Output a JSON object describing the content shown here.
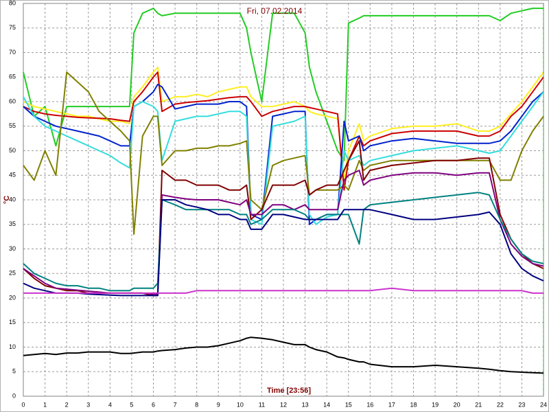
{
  "chart_data": {
    "type": "line",
    "title": "Fri, 07.02.2014",
    "x_label": "Time [23:56]",
    "y_label": "°C",
    "x": [
      0,
      0.5,
      1,
      1.5,
      2,
      2.5,
      3,
      3.5,
      4,
      4.5,
      4.9,
      5.1,
      5.5,
      6,
      6.2,
      6.4,
      7,
      7.5,
      8,
      8.5,
      9,
      9.5,
      10,
      10.3,
      10.5,
      11,
      11.5,
      12,
      12.5,
      13,
      13.2,
      13.5,
      14,
      14.5,
      14.8,
      15,
      15.5,
      15.7,
      16,
      17,
      18,
      19,
      20,
      21,
      21.5,
      22,
      22.5,
      23,
      23.5,
      24
    ],
    "xlim": [
      0,
      24
    ],
    "xticks": [
      0,
      1,
      2,
      3,
      4,
      5,
      6,
      7,
      8,
      9,
      10,
      11,
      12,
      13,
      14,
      15,
      16,
      17,
      18,
      19,
      20,
      21,
      22,
      23,
      24
    ],
    "ylim": [
      0,
      80
    ],
    "yticks": [
      0,
      5,
      10,
      15,
      20,
      25,
      30,
      35,
      40,
      45,
      50,
      55,
      60,
      65,
      70,
      75,
      80
    ],
    "grid": true,
    "series": [
      {
        "color": "#22cc22",
        "values": [
          66,
          57,
          59,
          51,
          59,
          59,
          59,
          59,
          59,
          59,
          59,
          74,
          78,
          79,
          78,
          77.5,
          78,
          78,
          78,
          78,
          78,
          78,
          78,
          75,
          70,
          60,
          78,
          78,
          78,
          74,
          67,
          62,
          56,
          50,
          48,
          76,
          77,
          77.5,
          77.5,
          77.5,
          77.5,
          77.5,
          77.5,
          77.5,
          77.5,
          76.5,
          78,
          78.5,
          79,
          79
        ]
      },
      {
        "color": "#ffee22",
        "values": [
          60,
          59,
          58.5,
          58,
          57.5,
          57,
          57,
          56.5,
          56,
          56,
          55.5,
          61,
          63,
          66,
          67,
          60,
          61,
          61,
          61.5,
          61,
          62,
          62.5,
          63,
          63,
          61,
          59,
          59,
          59.5,
          60,
          59,
          58,
          57.5,
          57,
          56.5,
          44,
          50,
          55.5,
          52,
          53,
          54.5,
          55,
          55,
          55.5,
          54,
          54,
          55,
          57.5,
          60,
          63,
          66
        ]
      },
      {
        "color": "#cc0000",
        "values": [
          59,
          58,
          57.5,
          57.2,
          57,
          56.8,
          56.7,
          56.6,
          56.5,
          56.2,
          56,
          60,
          62,
          65,
          66,
          58,
          59.5,
          59.8,
          60,
          60.2,
          60.5,
          60.8,
          61,
          61,
          60,
          57,
          58,
          58.5,
          59,
          59,
          58.8,
          58.5,
          58,
          57.5,
          42,
          48,
          53,
          51,
          52,
          53.5,
          54,
          54,
          54,
          53,
          53,
          54,
          57,
          59,
          62,
          65
        ]
      },
      {
        "color": "#0022cc",
        "values": [
          59,
          57,
          56,
          55,
          54.5,
          54,
          53.5,
          53,
          52,
          51,
          51,
          59,
          60,
          62,
          63.5,
          63,
          58.5,
          59,
          59.5,
          59.5,
          59.5,
          60,
          60,
          59,
          37,
          36,
          57,
          57.5,
          58,
          58,
          35,
          36,
          37,
          37,
          56,
          52,
          53,
          50,
          51,
          52,
          52.5,
          52,
          51.5,
          51.5,
          51.5,
          52,
          54,
          57,
          60,
          62
        ]
      },
      {
        "color": "#33dddd",
        "values": [
          61,
          57,
          55,
          54,
          53,
          52,
          51,
          50,
          49,
          47.5,
          46.5,
          59,
          60,
          59,
          58,
          48,
          56,
          56.5,
          57,
          57,
          57.5,
          58,
          58,
          57,
          36,
          35,
          55,
          55.5,
          56,
          57,
          37,
          35,
          36.5,
          37,
          50,
          48,
          49,
          47,
          48,
          49,
          50,
          50.5,
          51,
          50,
          49.5,
          50,
          53,
          56,
          59,
          62
        ]
      },
      {
        "color": "#808000",
        "values": [
          47,
          44,
          50,
          45,
          66,
          64,
          62,
          58,
          56,
          54,
          52,
          33,
          53,
          57,
          57,
          47,
          50,
          50,
          50.5,
          50.5,
          51,
          51,
          51.5,
          52,
          40,
          38,
          47,
          48,
          48.5,
          49,
          41,
          42,
          42,
          42,
          43,
          42,
          48,
          46,
          47,
          48,
          48,
          48,
          48,
          48,
          48,
          44,
          44,
          50,
          54,
          57
        ]
      },
      {
        "color": "#800000",
        "values": [
          26,
          24,
          22.5,
          22,
          21.5,
          21.5,
          21,
          21,
          21,
          21,
          21,
          21,
          21,
          20.5,
          20.5,
          46,
          44,
          44,
          43,
          43,
          43,
          42,
          42,
          43,
          36,
          38,
          43,
          43,
          43,
          44,
          41,
          42,
          43,
          43,
          46,
          48,
          52,
          44,
          46,
          47,
          47.5,
          48,
          48,
          48.5,
          48.5,
          37,
          32,
          29,
          27,
          26
        ]
      },
      {
        "color": "#800080",
        "values": [
          26,
          24.5,
          23,
          22,
          21.8,
          21.6,
          21.4,
          21.2,
          21,
          21,
          21,
          21,
          21,
          20.8,
          20.8,
          41,
          40.5,
          40.2,
          40,
          40,
          40,
          39.5,
          39,
          40,
          37,
          37,
          39,
          39,
          38,
          39,
          38,
          38,
          38,
          38,
          44,
          45,
          46,
          43,
          44,
          45,
          45.5,
          45.5,
          45,
          45.5,
          45.5,
          36,
          31,
          28.5,
          27,
          26.5
        ]
      },
      {
        "color": "#008080",
        "values": [
          27,
          25,
          24,
          23,
          22.5,
          22.5,
          22,
          22,
          21.5,
          21.5,
          21.5,
          22,
          22,
          22,
          23,
          40,
          39,
          38,
          38,
          38,
          38,
          38,
          37,
          37,
          35,
          36,
          38,
          38,
          38,
          37,
          36,
          36,
          37,
          37,
          37,
          37,
          31,
          38,
          39,
          39.5,
          40,
          40.5,
          41,
          41.5,
          41,
          36,
          32,
          29,
          27.5,
          27
        ]
      },
      {
        "color": "#000080",
        "values": [
          23,
          22,
          21.5,
          21,
          21,
          21,
          20.8,
          20.7,
          20.6,
          20.5,
          20.5,
          20.5,
          20.5,
          20.5,
          20.5,
          40,
          40,
          39,
          38.5,
          38,
          37,
          37,
          36,
          36,
          34,
          34,
          37,
          37,
          36.5,
          36,
          36,
          36,
          36,
          36,
          38,
          38,
          38,
          38,
          38,
          37,
          36,
          36,
          36.5,
          37,
          37.5,
          35,
          29,
          26,
          24.5,
          23.5
        ]
      },
      {
        "color": "#cc33cc",
        "values": [
          21,
          21,
          21,
          21,
          21,
          21,
          21,
          21,
          21,
          21,
          21,
          21,
          21,
          21,
          21,
          21,
          21,
          21,
          21.5,
          21.5,
          21.5,
          21.5,
          21.5,
          21.5,
          21.5,
          21.5,
          21.5,
          21.5,
          21.5,
          21.5,
          21.5,
          21.5,
          21.5,
          21.5,
          21.5,
          21.5,
          21.5,
          21.5,
          21.5,
          22,
          21.5,
          21.5,
          21.5,
          21.5,
          21.5,
          21.5,
          21.5,
          21.5,
          21,
          21
        ]
      },
      {
        "color": "#000000",
        "values": [
          8.3,
          8.5,
          8.7,
          8.5,
          8.8,
          8.8,
          9,
          9,
          9,
          8.7,
          8.7,
          8.8,
          9,
          9,
          9.2,
          9.3,
          9.5,
          9.8,
          10,
          10,
          10.3,
          10.8,
          11.3,
          11.8,
          12,
          11.8,
          11.5,
          11,
          10.5,
          10.5,
          10,
          9.5,
          9,
          8,
          7.8,
          7.5,
          7,
          7,
          6.5,
          6,
          6,
          6.3,
          6,
          5.7,
          5.5,
          5.2,
          5,
          4.9,
          4.8,
          4.7
        ]
      }
    ]
  }
}
